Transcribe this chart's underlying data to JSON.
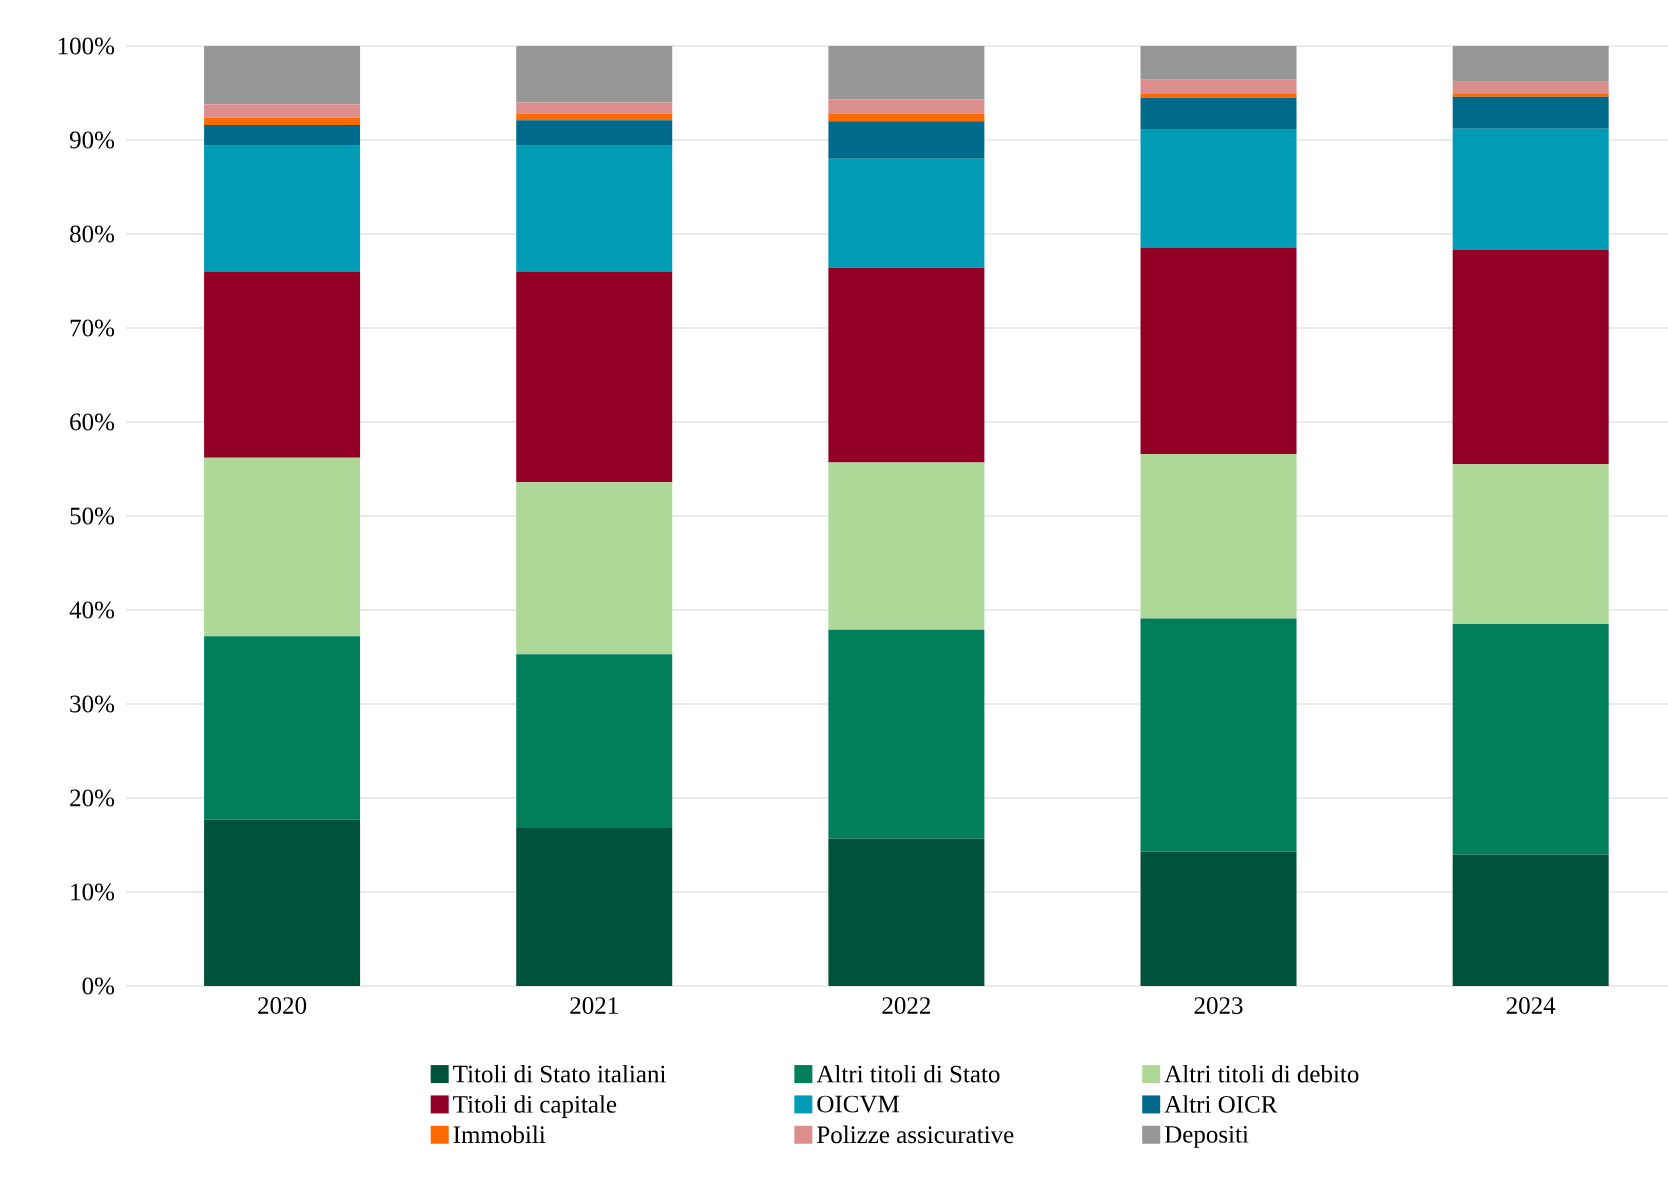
{
  "chart_data": {
    "type": "bar",
    "stacked": true,
    "categories": [
      "2020",
      "2021",
      "2022",
      "2023",
      "2024"
    ],
    "series": [
      {
        "name": "Titoli di Stato italiani",
        "color": "#00533b",
        "values": [
          17.7,
          16.8,
          15.7,
          14.3,
          14.0
        ]
      },
      {
        "name": "Altri titoli di Stato",
        "color": "#007f5a",
        "values": [
          19.5,
          18.5,
          22.2,
          24.8,
          24.5
        ]
      },
      {
        "name": "Altri titoli di debito",
        "color": "#add898",
        "values": [
          19.0,
          18.3,
          17.8,
          17.5,
          17.0
        ]
      },
      {
        "name": "Titoli di capitale",
        "color": "#930026",
        "values": [
          19.8,
          22.4,
          20.7,
          21.9,
          22.8
        ]
      },
      {
        "name": "OICVM",
        "color": "#009bb4",
        "values": [
          13.4,
          13.4,
          11.6,
          12.6,
          12.9
        ]
      },
      {
        "name": "Altri OICR",
        "color": "#006a8c",
        "values": [
          2.2,
          2.7,
          4.0,
          3.4,
          3.4
        ]
      },
      {
        "name": "Immobili",
        "color": "#ff6a00",
        "values": [
          0.8,
          0.7,
          0.8,
          0.4,
          0.3
        ]
      },
      {
        "name": "Polizze assicurative",
        "color": "#dc8e8c",
        "values": [
          1.4,
          1.2,
          1.5,
          1.5,
          1.3
        ]
      },
      {
        "name": "Depositi",
        "color": "#969696",
        "values": [
          6.2,
          6.0,
          5.7,
          3.6,
          3.8
        ]
      }
    ],
    "ylim": [
      0,
      100
    ],
    "yticks": [
      {
        "value": 0,
        "label": "0%"
      },
      {
        "value": 10,
        "label": "10%"
      },
      {
        "value": 20,
        "label": "20%"
      },
      {
        "value": 30,
        "label": "30%"
      },
      {
        "value": 40,
        "label": "40%"
      },
      {
        "value": 50,
        "label": "50%"
      },
      {
        "value": 60,
        "label": "60%"
      },
      {
        "value": 70,
        "label": "70%"
      },
      {
        "value": 80,
        "label": "80%"
      },
      {
        "value": 90,
        "label": "90%"
      },
      {
        "value": 100,
        "label": "100%"
      }
    ],
    "grid": "y",
    "legend": "bottom"
  }
}
